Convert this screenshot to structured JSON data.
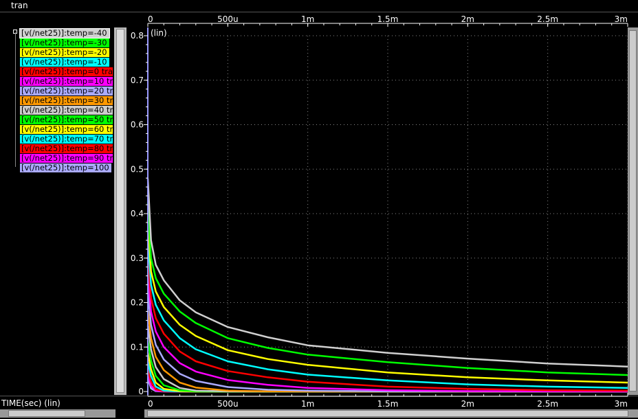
{
  "window": {
    "tab_title": "tran"
  },
  "xaxis_title": "TIME(sec) (lin)",
  "colors": {
    "background": "#000000",
    "grid": "#8a8a8a",
    "cursor": "#9999ff"
  },
  "chart_data": {
    "type": "line",
    "xlim": [
      0,
      0.003
    ],
    "ylim": [
      0,
      0.8
    ],
    "y_scale_label": "(lin)",
    "x_ticks": [
      {
        "value": 0,
        "label": "0"
      },
      {
        "value": 0.0005,
        "label": "500u"
      },
      {
        "value": 0.001,
        "label": "1m"
      },
      {
        "value": 0.0015,
        "label": "1.5m"
      },
      {
        "value": 0.002,
        "label": "2m"
      },
      {
        "value": 0.0025,
        "label": "2.5m"
      },
      {
        "value": 0.003,
        "label": "3m"
      }
    ],
    "y_ticks": [
      {
        "value": 0,
        "label": "0"
      },
      {
        "value": 0.1,
        "label": "0.1"
      },
      {
        "value": 0.2,
        "label": "0.2"
      },
      {
        "value": 0.3,
        "label": "0.3"
      },
      {
        "value": 0.4,
        "label": "0.4"
      },
      {
        "value": 0.5,
        "label": "0.5"
      },
      {
        "value": 0.6,
        "label": "0.6"
      },
      {
        "value": 0.7,
        "label": "0.7"
      },
      {
        "value": 0.8,
        "label": "0.8"
      }
    ],
    "grid": true,
    "x": [
      2e-05,
      5e-05,
      0.0001,
      0.0002,
      0.0003,
      0.0005,
      0.00075,
      0.001,
      0.0015,
      0.002,
      0.0025,
      0.003
    ],
    "series": [
      {
        "name": "[v(/net25)]:temp=-40",
        "color": "#d0d0d0",
        "values": [
          0.34,
          0.285,
          0.25,
          0.205,
          0.178,
          0.145,
          0.122,
          0.104,
          0.087,
          0.074,
          0.063,
          0.056
        ]
      },
      {
        "name": "[v(/net25)]:temp=-30",
        "color": "#00ff00",
        "values": [
          0.3,
          0.255,
          0.22,
          0.18,
          0.154,
          0.12,
          0.098,
          0.083,
          0.066,
          0.053,
          0.043,
          0.037
        ]
      },
      {
        "name": "[v(/net25)]:temp=-20",
        "color": "#ffff00",
        "values": [
          0.27,
          0.225,
          0.19,
          0.15,
          0.125,
          0.093,
          0.073,
          0.06,
          0.043,
          0.032,
          0.025,
          0.02
        ]
      },
      {
        "name": "[v(/net25)]:temp=-10 ",
        "color": "#00ffff",
        "values": [
          0.24,
          0.195,
          0.16,
          0.12,
          0.095,
          0.068,
          0.05,
          0.038,
          0.025,
          0.016,
          0.011,
          0.008
        ]
      },
      {
        "name": "[v(/net25)]:temp=0 tra",
        "color": "#ff0000",
        "values": [
          0.21,
          0.165,
          0.13,
          0.09,
          0.068,
          0.046,
          0.032,
          0.022,
          0.011,
          0.006,
          0.003,
          0.002
        ]
      },
      {
        "name": "[v(/net25)]:temp=10 tr",
        "color": "#ff00ff",
        "values": [
          0.18,
          0.135,
          0.1,
          0.064,
          0.045,
          0.026,
          0.015,
          0.008,
          0.003,
          0.001,
          0.0005,
          0.0002
        ]
      },
      {
        "name": "[v(/net25)]:temp=20 tr",
        "color": "#aaaaff",
        "values": [
          0.15,
          0.105,
          0.072,
          0.04,
          0.024,
          0.01,
          0.004,
          0.002,
          0.0005,
          0.0001,
          0,
          0
        ]
      },
      {
        "name": "[v(/net25)]:temp=30 tr",
        "color": "#ff9900",
        "values": [
          0.12,
          0.078,
          0.048,
          0.02,
          0.009,
          0.002,
          0.0005,
          0.0001,
          0,
          0,
          0,
          0
        ]
      },
      {
        "name": "[v(/net25)]:temp=40 tr",
        "color": "#cccccc",
        "values": [
          0.095,
          0.055,
          0.028,
          0.008,
          0.002,
          0.0003,
          0,
          0,
          0,
          0,
          0,
          0
        ]
      },
      {
        "name": "[v(/net25)]:temp=50 tr",
        "color": "#00ff00",
        "values": [
          0.07,
          0.035,
          0.014,
          0.003,
          0.0006,
          0,
          0,
          0,
          0,
          0,
          0,
          0
        ]
      },
      {
        "name": "[v(/net25)]:temp=60 tr",
        "color": "#ffff00",
        "values": [
          0.05,
          0.02,
          0.006,
          0.001,
          0,
          0,
          0,
          0,
          0,
          0,
          0,
          0
        ]
      },
      {
        "name": "[v(/net25)]:temp=70 tr",
        "color": "#00ffff",
        "values": [
          0.035,
          0.011,
          0.002,
          0.0002,
          0,
          0,
          0,
          0,
          0,
          0,
          0,
          0
        ]
      },
      {
        "name": "[v(/net25)]:temp=80 tr",
        "color": "#ff0000",
        "values": [
          0.022,
          0.005,
          0.0008,
          0,
          0,
          0,
          0,
          0,
          0,
          0,
          0,
          0
        ]
      },
      {
        "name": "[v(/net25)]:temp=90 tr",
        "color": "#ff00ff",
        "values": [
          0.013,
          0.002,
          0.0002,
          0,
          0,
          0,
          0,
          0,
          0,
          0,
          0,
          0
        ]
      },
      {
        "name": "[v(/net25)]:temp=100",
        "color": "#aaaaff",
        "values": [
          0.007,
          0.001,
          0,
          0,
          0,
          0,
          0,
          0,
          0,
          0,
          0,
          0
        ]
      }
    ]
  }
}
